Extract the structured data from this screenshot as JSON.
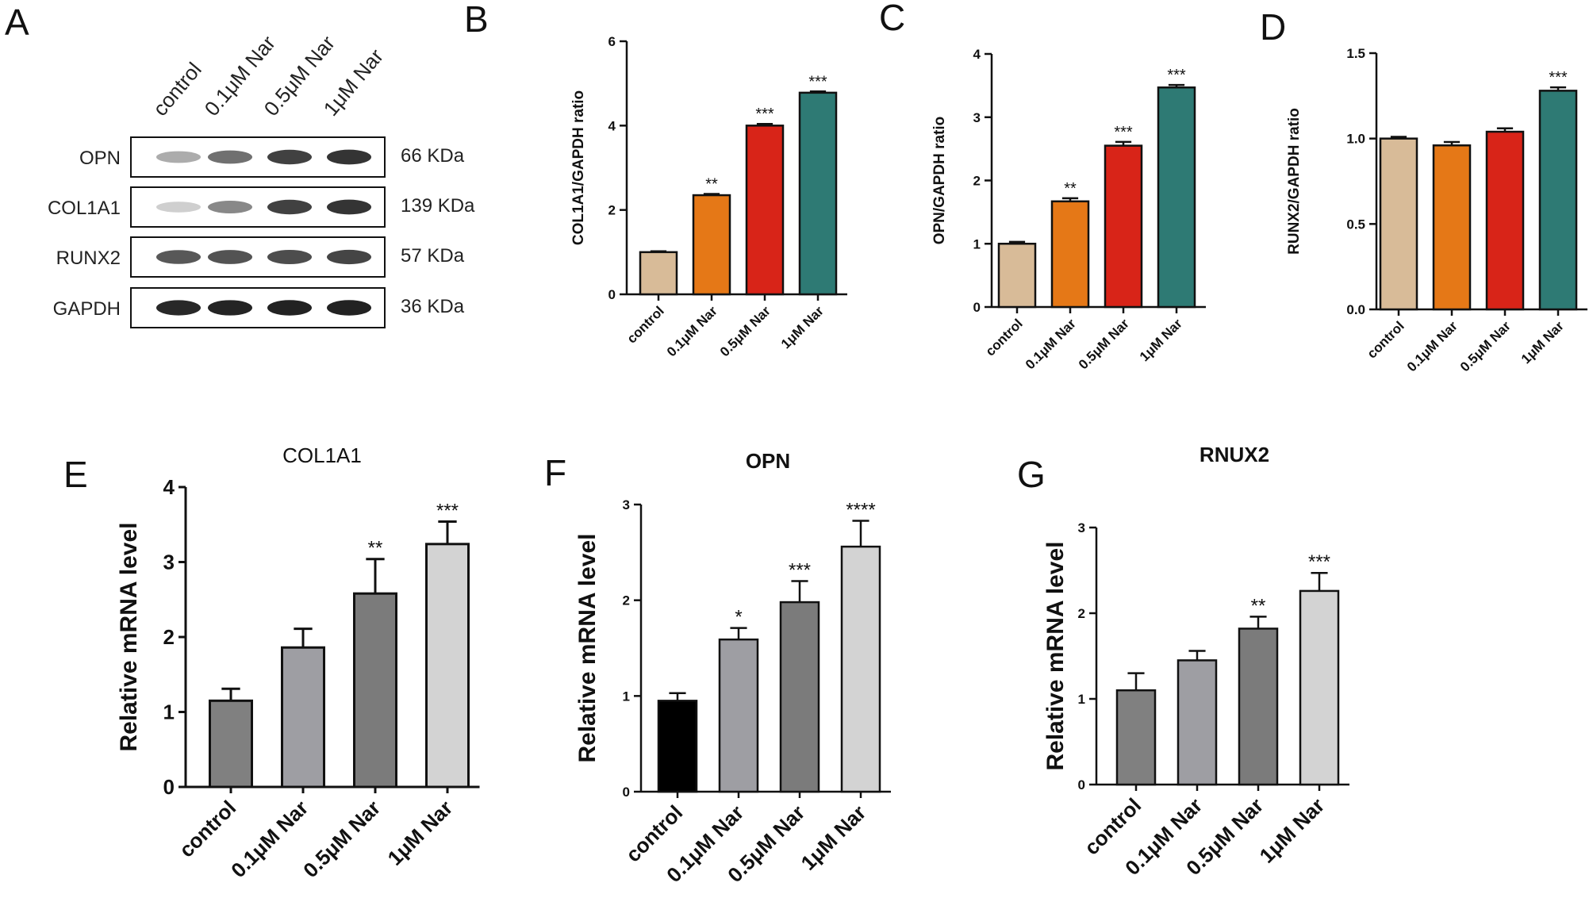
{
  "panel_labels": [
    "A",
    "B",
    "C",
    "D",
    "E",
    "F",
    "G"
  ],
  "western_blot": {
    "columns": [
      "control",
      "0.1μM Nar",
      "0.5μM Nar",
      "1μM Nar"
    ],
    "rows": [
      {
        "protein": "OPN",
        "kda": "66 KDa",
        "intensity": [
          0.35,
          0.6,
          0.8,
          0.85
        ]
      },
      {
        "protein": "COL1A1",
        "kda": "139 KDa",
        "intensity": [
          0.2,
          0.5,
          0.8,
          0.85
        ]
      },
      {
        "protein": "RUNX2",
        "kda": "57 KDa",
        "intensity": [
          0.7,
          0.72,
          0.75,
          0.78
        ]
      },
      {
        "protein": "GAPDH",
        "kda": "36 KDa",
        "intensity": [
          0.9,
          0.92,
          0.93,
          0.93
        ]
      }
    ]
  },
  "chart_data": [
    {
      "id": "B",
      "type": "bar",
      "title": "",
      "categories": [
        "control",
        "0.1μM Nar",
        "0.5μM Nar",
        "1μM Nar"
      ],
      "values": [
        1.0,
        2.35,
        4.0,
        4.78
      ],
      "errors": [
        0.02,
        0.03,
        0.04,
        0.03
      ],
      "significance": [
        "",
        "**",
        "***",
        "***"
      ],
      "ylabel": "COL1A1/GAPDH ratio",
      "ylim": [
        0,
        6
      ],
      "yticks": [
        "0",
        "2",
        "4",
        "6"
      ],
      "colors": [
        "#d8bb98",
        "#e57817",
        "#d82418",
        "#2e7a74"
      ]
    },
    {
      "id": "C",
      "type": "bar",
      "title": "",
      "categories": [
        "control",
        "0.1μM Nar",
        "0.5μM Nar",
        "1μM Nar"
      ],
      "values": [
        1.0,
        1.67,
        2.55,
        3.47
      ],
      "errors": [
        0.03,
        0.05,
        0.06,
        0.04
      ],
      "significance": [
        "",
        "**",
        "***",
        "***"
      ],
      "ylabel": "OPN/GAPDH ratio",
      "ylim": [
        0,
        4
      ],
      "yticks": [
        "0",
        "1",
        "2",
        "3",
        "4"
      ],
      "colors": [
        "#d8bb98",
        "#e57817",
        "#d82418",
        "#2e7a74"
      ]
    },
    {
      "id": "D",
      "type": "bar",
      "title": "",
      "categories": [
        "control",
        "0.1μM Nar",
        "0.5μM Nar",
        "1μM Nar"
      ],
      "values": [
        1.0,
        0.96,
        1.04,
        1.28
      ],
      "errors": [
        0.01,
        0.02,
        0.02,
        0.02
      ],
      "significance": [
        "",
        "",
        "",
        "***"
      ],
      "ylabel": "RUNX2/GAPDH ratio",
      "ylim": [
        0,
        1.5
      ],
      "yticks": [
        "0.0",
        "0.5",
        "1.0",
        "1.5"
      ],
      "colors": [
        "#d8bb98",
        "#e57817",
        "#d82418",
        "#2e7a74"
      ]
    },
    {
      "id": "E",
      "type": "bar",
      "title": "COL1A1",
      "categories": [
        "control",
        "0.1μM Nar",
        "0.5μM Nar",
        "1μM Nar"
      ],
      "values": [
        1.15,
        1.86,
        2.58,
        3.24
      ],
      "errors": [
        0.16,
        0.25,
        0.46,
        0.3
      ],
      "significance": [
        "",
        "",
        "**",
        "***"
      ],
      "ylabel": "Relative mRNA level",
      "ylim": [
        0,
        4
      ],
      "yticks": [
        "0",
        "1",
        "2",
        "3",
        "4"
      ],
      "colors": [
        "#808080",
        "#9e9ea3",
        "#7b7b7b",
        "#d3d3d3"
      ]
    },
    {
      "id": "F",
      "type": "bar",
      "title": "OPN",
      "categories": [
        "control",
        "0.1μM Nar",
        "0.5μM Nar",
        "1μM Nar"
      ],
      "values": [
        0.95,
        1.59,
        1.98,
        2.56
      ],
      "errors": [
        0.08,
        0.12,
        0.22,
        0.27
      ],
      "significance": [
        "",
        "*",
        "***",
        "****"
      ],
      "ylabel": "Relative mRNA level",
      "ylim": [
        0,
        3
      ],
      "yticks": [
        "0",
        "1",
        "2",
        "3"
      ],
      "colors": [
        "#000000",
        "#9e9ea3",
        "#7b7b7b",
        "#d3d3d3"
      ]
    },
    {
      "id": "G",
      "type": "bar",
      "title": "RNUX2",
      "categories": [
        "control",
        "0.1μM Nar",
        "0.5μM Nar",
        "1μM Nar"
      ],
      "values": [
        1.1,
        1.45,
        1.82,
        2.26
      ],
      "errors": [
        0.2,
        0.11,
        0.14,
        0.21
      ],
      "significance": [
        "",
        "",
        "**",
        "***"
      ],
      "ylabel": "Relative mRNA level",
      "ylim": [
        0,
        3
      ],
      "yticks": [
        "0",
        "1",
        "2",
        "3"
      ],
      "colors": [
        "#808080",
        "#9e9ea3",
        "#7b7b7b",
        "#d3d3d3"
      ]
    }
  ]
}
